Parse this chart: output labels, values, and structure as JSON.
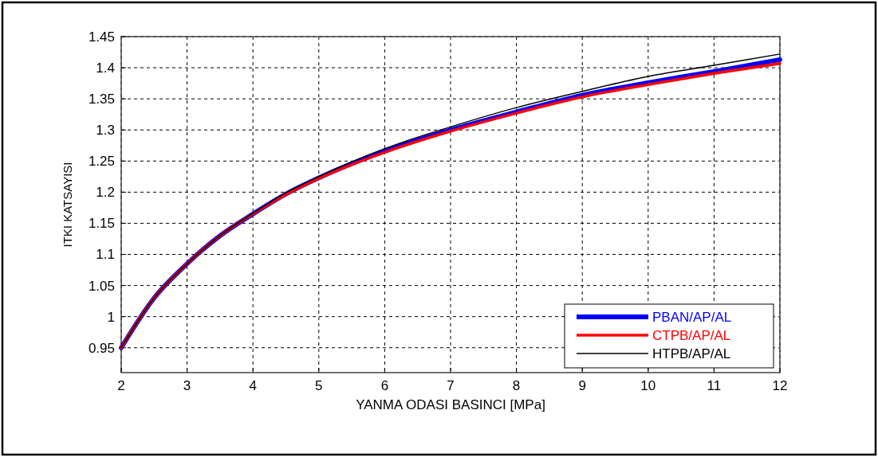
{
  "chart_data": {
    "type": "line",
    "xlabel": "YANMA ODASI BASINCI [MPa]",
    "ylabel": "ITKI KATSAYISI",
    "x": [
      2,
      2.5,
      3,
      3.5,
      4,
      4.5,
      5,
      6,
      7,
      8,
      9,
      10,
      11,
      12
    ],
    "series": [
      {
        "name": "PBAN/AP/AL",
        "color": "#0000ff",
        "values": [
          0.95,
          1.03,
          1.085,
          1.13,
          1.165,
          1.197,
          1.223,
          1.266,
          1.3,
          1.329,
          1.356,
          1.376,
          1.394,
          1.413
        ]
      },
      {
        "name": "CTPB/AP/AL",
        "color": "#ff0000",
        "values": [
          0.95,
          1.03,
          1.085,
          1.13,
          1.165,
          1.196,
          1.222,
          1.264,
          1.298,
          1.327,
          1.353,
          1.373,
          1.391,
          1.407
        ]
      },
      {
        "name": "HTPB/AP/AL",
        "color": "#000000",
        "values": [
          0.95,
          1.03,
          1.085,
          1.13,
          1.166,
          1.199,
          1.225,
          1.27,
          1.305,
          1.336,
          1.362,
          1.386,
          1.404,
          1.422
        ]
      }
    ],
    "xlim": [
      2,
      12
    ],
    "xticks": [
      2,
      3,
      4,
      5,
      6,
      7,
      8,
      9,
      10,
      11,
      12
    ],
    "ylim": [
      0.91,
      1.45
    ],
    "yticks": [
      0.95,
      1,
      1.05,
      1.1,
      1.15,
      1.2,
      1.25,
      1.3,
      1.35,
      1.4,
      1.45
    ],
    "grid": true,
    "legend": "bottom right"
  }
}
